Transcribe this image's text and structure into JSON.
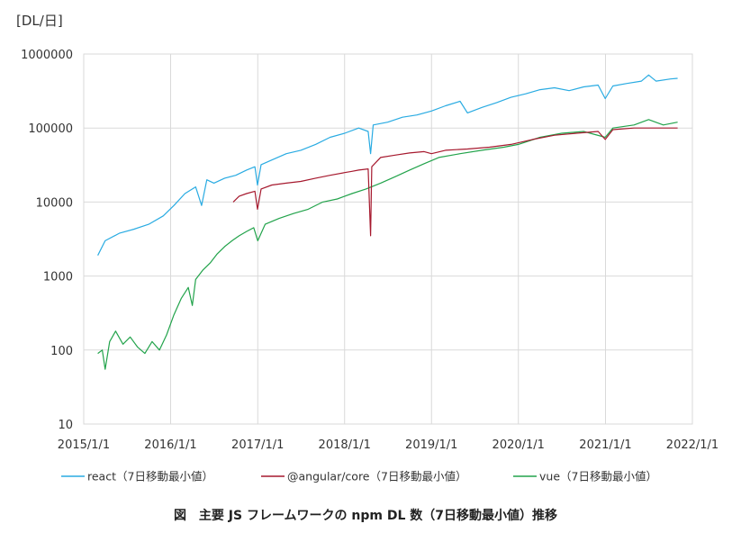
{
  "chart_data": {
    "type": "line",
    "y_unit_label": "[DL/日]",
    "yscale": "log",
    "ylim": [
      10,
      1000000
    ],
    "yticks": [
      "1000000",
      "100000",
      "10000",
      "1000",
      "100",
      "10"
    ],
    "xlim": [
      "2015/1/1",
      "2022/1/1"
    ],
    "xticks": [
      "2015/1/1",
      "2016/1/1",
      "2017/1/1",
      "2018/1/1",
      "2019/1/1",
      "2020/1/1",
      "2021/1/1",
      "2022/1/1"
    ],
    "grid": true,
    "legend_position": "bottom",
    "caption": "図　主要 JS フレームワークの npm DL 数（7日移動最小値）推移",
    "series": [
      {
        "name": "react（7日移動最小値）",
        "color": "#29ABE2",
        "points": [
          [
            "2015/3/1",
            1900
          ],
          [
            "2015/4/1",
            3000
          ],
          [
            "2015/6/1",
            3800
          ],
          [
            "2015/8/1",
            4300
          ],
          [
            "2015/10/1",
            5000
          ],
          [
            "2015/12/1",
            6500
          ],
          [
            "2016/1/15",
            9000
          ],
          [
            "2016/3/1",
            13000
          ],
          [
            "2016/4/15",
            16000
          ],
          [
            "2016/5/10",
            9000
          ],
          [
            "2016/6/1",
            20000
          ],
          [
            "2016/7/1",
            18000
          ],
          [
            "2016/8/15",
            21000
          ],
          [
            "2016/10/1",
            23000
          ],
          [
            "2016/11/15",
            27000
          ],
          [
            "2016/12/20",
            30000
          ],
          [
            "2016/12/31",
            17000
          ],
          [
            "2017/1/15",
            32000
          ],
          [
            "2017/3/1",
            37000
          ],
          [
            "2017/5/1",
            45000
          ],
          [
            "2017/7/1",
            50000
          ],
          [
            "2017/9/1",
            60000
          ],
          [
            "2017/11/1",
            75000
          ],
          [
            "2018/1/1",
            85000
          ],
          [
            "2018/3/1",
            100000
          ],
          [
            "2018/4/10",
            90000
          ],
          [
            "2018/4/20",
            45000
          ],
          [
            "2018/5/1",
            110000
          ],
          [
            "2018/7/1",
            120000
          ],
          [
            "2018/9/1",
            140000
          ],
          [
            "2018/11/1",
            150000
          ],
          [
            "2019/1/1",
            170000
          ],
          [
            "2019/3/1",
            200000
          ],
          [
            "2019/5/1",
            230000
          ],
          [
            "2019/6/1",
            160000
          ],
          [
            "2019/8/1",
            190000
          ],
          [
            "2019/10/1",
            220000
          ],
          [
            "2019/12/1",
            260000
          ],
          [
            "2020/2/1",
            290000
          ],
          [
            "2020/4/1",
            330000
          ],
          [
            "2020/6/1",
            350000
          ],
          [
            "2020/8/1",
            320000
          ],
          [
            "2020/10/1",
            360000
          ],
          [
            "2020/12/1",
            380000
          ],
          [
            "2020/12/31",
            250000
          ],
          [
            "2021/2/1",
            370000
          ],
          [
            "2021/4/1",
            400000
          ],
          [
            "2021/6/1",
            430000
          ],
          [
            "2021/7/1",
            520000
          ],
          [
            "2021/8/1",
            430000
          ],
          [
            "2021/10/1",
            460000
          ],
          [
            "2021/10/31",
            470000
          ]
        ]
      },
      {
        "name": "@angular/core（7日移動最小値）",
        "color": "#A6192E",
        "points": [
          [
            "2016/9/20",
            10000
          ],
          [
            "2016/10/15",
            12000
          ],
          [
            "2016/11/15",
            13000
          ],
          [
            "2016/12/20",
            14000
          ],
          [
            "2016/12/31",
            8000
          ],
          [
            "2017/1/15",
            15000
          ],
          [
            "2017/3/1",
            17000
          ],
          [
            "2017/5/1",
            18000
          ],
          [
            "2017/7/1",
            19000
          ],
          [
            "2017/9/1",
            21000
          ],
          [
            "2017/11/1",
            23000
          ],
          [
            "2018/1/1",
            25000
          ],
          [
            "2018/2/1",
            26000
          ],
          [
            "2018/3/1",
            27000
          ],
          [
            "2018/4/10",
            28000
          ],
          [
            "2018/4/20",
            3500
          ],
          [
            "2018/4/25",
            30000
          ],
          [
            "2018/6/1",
            40000
          ],
          [
            "2018/8/1",
            43000
          ],
          [
            "2018/10/1",
            46000
          ],
          [
            "2018/12/1",
            48000
          ],
          [
            "2019/1/1",
            45000
          ],
          [
            "2019/3/1",
            50000
          ],
          [
            "2019/6/1",
            52000
          ],
          [
            "2019/9/1",
            55000
          ],
          [
            "2019/12/1",
            60000
          ],
          [
            "2020/3/1",
            70000
          ],
          [
            "2020/6/1",
            80000
          ],
          [
            "2020/9/1",
            85000
          ],
          [
            "2020/12/1",
            90000
          ],
          [
            "2020/12/31",
            70000
          ],
          [
            "2021/2/1",
            95000
          ],
          [
            "2021/5/1",
            100000
          ],
          [
            "2021/8/1",
            100000
          ],
          [
            "2021/10/31",
            100000
          ]
        ]
      },
      {
        "name": "vue（7日移動最小値）",
        "color": "#22A34B",
        "points": [
          [
            "2015/3/1",
            90
          ],
          [
            "2015/3/20",
            100
          ],
          [
            "2015/4/1",
            55
          ],
          [
            "2015/4/20",
            130
          ],
          [
            "2015/5/15",
            180
          ],
          [
            "2015/6/15",
            120
          ],
          [
            "2015/7/15",
            150
          ],
          [
            "2015/8/15",
            110
          ],
          [
            "2015/9/15",
            90
          ],
          [
            "2015/10/15",
            130
          ],
          [
            "2015/11/15",
            100
          ],
          [
            "2015/12/15",
            160
          ],
          [
            "2016/1/15",
            300
          ],
          [
            "2016/2/15",
            500
          ],
          [
            "2016/3/15",
            700
          ],
          [
            "2016/4/1",
            400
          ],
          [
            "2016/4/15",
            900
          ],
          [
            "2016/5/15",
            1200
          ],
          [
            "2016/6/15",
            1500
          ],
          [
            "2016/7/15",
            2000
          ],
          [
            "2016/8/15",
            2500
          ],
          [
            "2016/9/15",
            3000
          ],
          [
            "2016/10/15",
            3500
          ],
          [
            "2016/11/15",
            4000
          ],
          [
            "2016/12/15",
            4500
          ],
          [
            "2017/1/1",
            3000
          ],
          [
            "2017/2/1",
            5000
          ],
          [
            "2017/4/1",
            6000
          ],
          [
            "2017/6/1",
            7000
          ],
          [
            "2017/8/1",
            8000
          ],
          [
            "2017/10/1",
            10000
          ],
          [
            "2017/12/1",
            11000
          ],
          [
            "2018/2/1",
            13000
          ],
          [
            "2018/4/1",
            15000
          ],
          [
            "2018/6/1",
            18000
          ],
          [
            "2018/8/1",
            22000
          ],
          [
            "2018/10/1",
            27000
          ],
          [
            "2018/12/1",
            33000
          ],
          [
            "2019/2/1",
            40000
          ],
          [
            "2019/5/1",
            45000
          ],
          [
            "2019/8/1",
            50000
          ],
          [
            "2019/11/1",
            55000
          ],
          [
            "2020/1/1",
            60000
          ],
          [
            "2020/4/1",
            75000
          ],
          [
            "2020/7/1",
            85000
          ],
          [
            "2020/10/1",
            90000
          ],
          [
            "2020/12/31",
            75000
          ],
          [
            "2021/2/1",
            100000
          ],
          [
            "2021/5/1",
            110000
          ],
          [
            "2021/7/1",
            130000
          ],
          [
            "2021/9/1",
            110000
          ],
          [
            "2021/10/31",
            120000
          ]
        ]
      }
    ]
  }
}
